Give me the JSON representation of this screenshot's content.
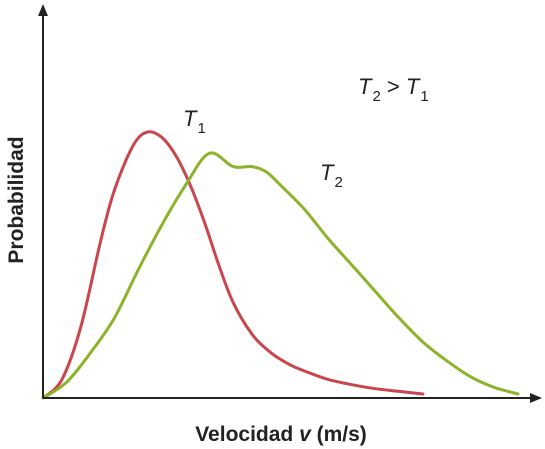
{
  "chart_data": {
    "type": "line",
    "title": "",
    "xlabel": {
      "pre": "Velocidad ",
      "var": "v",
      "post": " (m/s)"
    },
    "ylabel": "Probabilidad",
    "xlim": [
      0,
      100
    ],
    "ylim": [
      0,
      100
    ],
    "grid": false,
    "annotation": {
      "lhs": "T",
      "lhs_sub": "2",
      "op": " > ",
      "rhs": "T",
      "rhs_sub": "1"
    },
    "colors": {
      "T1": "#c9464c",
      "T2": "#8cb32a",
      "axis": "#222222"
    },
    "series": [
      {
        "name": "T",
        "sub": "1",
        "color": "#c9464c",
        "x": [
          0,
          4,
          8,
          12,
          15,
          19,
          22,
          25,
          28,
          31,
          34,
          37,
          40,
          44,
          48,
          52,
          56,
          60,
          65,
          70,
          75,
          80
        ],
        "y": [
          0,
          7,
          27,
          58,
          78,
          95,
          100,
          98,
          91,
          80,
          66,
          50,
          36,
          24,
          17,
          12.5,
          9.5,
          7,
          5,
          3.5,
          2.5,
          1.5
        ]
      },
      {
        "name": "T",
        "sub": "2",
        "color": "#8cb32a",
        "x": [
          0,
          5,
          10,
          15,
          20,
          25,
          30,
          35,
          40,
          44,
          47,
          50,
          55,
          60,
          65,
          70,
          75,
          80,
          85,
          90,
          95,
          100
        ],
        "y": [
          0,
          6,
          17,
          30,
          48,
          65,
          80,
          92,
          87,
          87,
          85,
          80,
          71,
          60,
          50,
          40,
          30,
          21,
          14,
          8,
          4,
          1.5
        ]
      }
    ]
  }
}
